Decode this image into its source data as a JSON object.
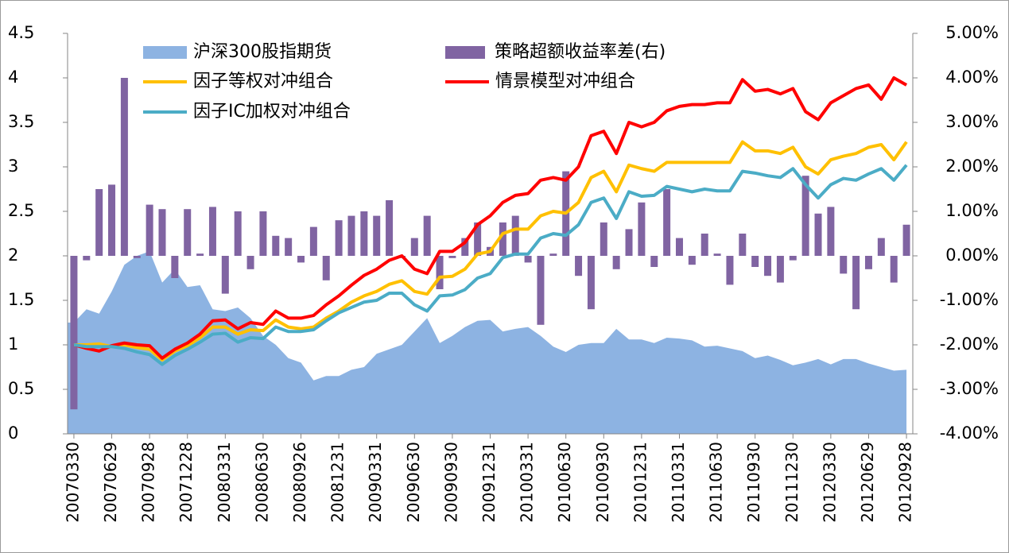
{
  "chart_data": {
    "type": "combo",
    "categories": [
      "20070330",
      null,
      null,
      "20070629",
      null,
      null,
      "20070928",
      null,
      null,
      "20071228",
      null,
      null,
      "20080331",
      null,
      null,
      "20080630",
      null,
      null,
      "20080926",
      null,
      null,
      "20081231",
      null,
      null,
      "20090331",
      null,
      null,
      "20090630",
      null,
      null,
      "20090930",
      null,
      null,
      "20091231",
      null,
      null,
      "20100331",
      null,
      null,
      "20100630",
      null,
      null,
      "20100930",
      null,
      null,
      "20101231",
      null,
      null,
      "20110331",
      null,
      null,
      "20110630",
      null,
      null,
      "20110930",
      null,
      null,
      "20111230",
      null,
      null,
      "20120330",
      null,
      null,
      "20120629",
      null,
      null,
      "20120928"
    ],
    "ylim": [
      0,
      4.5
    ],
    "yticks": [
      0,
      0.5,
      1,
      1.5,
      2,
      2.5,
      3,
      3.5,
      4,
      4.5
    ],
    "y2lim": [
      -4,
      5
    ],
    "y2ticks": [
      {
        "value": -4,
        "label": "-4.00%"
      },
      {
        "value": -3,
        "label": "-3.00%"
      },
      {
        "value": -2,
        "label": "-2.00%"
      },
      {
        "value": -1,
        "label": "-1.00%"
      },
      {
        "value": 0,
        "label": "0.00%"
      },
      {
        "value": 1,
        "label": "1.00%"
      },
      {
        "value": 2,
        "label": "2.00%"
      },
      {
        "value": 3,
        "label": "3.00%"
      },
      {
        "value": 4,
        "label": "4.00%"
      },
      {
        "value": 5,
        "label": "5.00%"
      }
    ],
    "grid": false,
    "legend": "top-left",
    "series": [
      {
        "name": "沪深300股指期货",
        "type": "area",
        "color": "#8db3e2",
        "values": [
          1.25,
          1.4,
          1.35,
          1.6,
          1.9,
          2.0,
          2.05,
          1.7,
          1.85,
          1.65,
          1.67,
          1.4,
          1.38,
          1.42,
          1.3,
          1.1,
          1.0,
          0.85,
          0.8,
          0.6,
          0.65,
          0.65,
          0.72,
          0.75,
          0.9,
          0.95,
          1.0,
          1.15,
          1.3,
          1.02,
          1.1,
          1.2,
          1.27,
          1.28,
          1.15,
          1.18,
          1.2,
          1.1,
          0.98,
          0.92,
          1.0,
          1.02,
          1.02,
          1.18,
          1.06,
          1.06,
          1.02,
          1.08,
          1.07,
          1.05,
          0.98,
          0.99,
          0.96,
          0.93,
          0.85,
          0.88,
          0.83,
          0.77,
          0.8,
          0.84,
          0.78,
          0.84,
          0.84,
          0.79,
          0.75,
          0.71,
          0.72
        ]
      },
      {
        "name": "策略超额收益率差(右)",
        "type": "bar",
        "axis": "y2",
        "color": "#8064a2",
        "values": [
          -3.45,
          -0.1,
          1.5,
          1.6,
          4.0,
          -0.05,
          1.15,
          1.05,
          -0.5,
          1.05,
          0.05,
          1.1,
          -0.85,
          1.0,
          -0.3,
          1.0,
          0.45,
          0.4,
          -0.15,
          0.65,
          -0.55,
          0.8,
          0.9,
          1.0,
          0.9,
          1.25,
          -0.05,
          0.4,
          0.9,
          -0.75,
          -0.05,
          0.4,
          0.75,
          0.2,
          0.75,
          0.9,
          -0.15,
          -1.55,
          0.05,
          1.9,
          -0.45,
          -1.2,
          0.75,
          -0.3,
          0.6,
          1.2,
          -0.25,
          1.5,
          0.4,
          -0.2,
          0.5,
          0.05,
          -0.65,
          0.5,
          -0.25,
          -0.45,
          -0.6,
          -0.1,
          1.8,
          0.95,
          1.1,
          -0.4,
          -1.2,
          -0.3,
          0.4,
          -0.6,
          0.7
        ]
      },
      {
        "name": "因子等权对冲组合",
        "type": "line",
        "color": "#ffc000",
        "values": [
          1.0,
          1.0,
          1.01,
          0.98,
          1.0,
          0.97,
          0.95,
          0.83,
          0.93,
          0.99,
          1.08,
          1.2,
          1.2,
          1.12,
          1.17,
          1.16,
          1.28,
          1.2,
          1.18,
          1.2,
          1.3,
          1.38,
          1.48,
          1.55,
          1.6,
          1.68,
          1.72,
          1.6,
          1.57,
          1.76,
          1.77,
          1.85,
          2.02,
          2.05,
          2.25,
          2.3,
          2.3,
          2.45,
          2.5,
          2.48,
          2.6,
          2.88,
          2.95,
          2.72,
          3.02,
          2.98,
          2.95,
          3.05,
          3.05,
          3.05,
          3.05,
          3.05,
          3.05,
          3.28,
          3.18,
          3.18,
          3.15,
          3.22,
          3.0,
          2.92,
          3.08,
          3.12,
          3.15,
          3.22,
          3.25,
          3.08,
          3.28
        ]
      },
      {
        "name": "情景模型对冲组合",
        "type": "line",
        "color": "#ff0000",
        "values": [
          1.0,
          0.96,
          0.93,
          0.99,
          1.02,
          1.0,
          0.99,
          0.85,
          0.95,
          1.02,
          1.12,
          1.27,
          1.28,
          1.18,
          1.25,
          1.23,
          1.38,
          1.3,
          1.3,
          1.33,
          1.45,
          1.55,
          1.67,
          1.78,
          1.85,
          1.95,
          2.0,
          1.85,
          1.8,
          2.05,
          2.05,
          2.15,
          2.35,
          2.45,
          2.6,
          2.68,
          2.7,
          2.85,
          2.88,
          2.85,
          3.0,
          3.35,
          3.4,
          3.15,
          3.5,
          3.45,
          3.5,
          3.63,
          3.68,
          3.7,
          3.7,
          3.72,
          3.72,
          3.98,
          3.85,
          3.87,
          3.82,
          3.88,
          3.62,
          3.53,
          3.72,
          3.8,
          3.88,
          3.92,
          3.76,
          4.0,
          3.92
        ]
      },
      {
        "name": "因子IC加权对冲组合",
        "type": "line",
        "color": "#4bacc6",
        "values": [
          1.0,
          0.98,
          0.98,
          0.98,
          0.96,
          0.92,
          0.89,
          0.78,
          0.88,
          0.95,
          1.03,
          1.12,
          1.13,
          1.03,
          1.08,
          1.07,
          1.2,
          1.15,
          1.15,
          1.17,
          1.27,
          1.36,
          1.42,
          1.48,
          1.5,
          1.58,
          1.58,
          1.45,
          1.38,
          1.55,
          1.56,
          1.62,
          1.75,
          1.8,
          1.98,
          2.02,
          2.02,
          2.2,
          2.25,
          2.23,
          2.35,
          2.6,
          2.65,
          2.42,
          2.72,
          2.67,
          2.68,
          2.78,
          2.75,
          2.72,
          2.75,
          2.73,
          2.73,
          2.95,
          2.93,
          2.9,
          2.88,
          2.98,
          2.8,
          2.65,
          2.8,
          2.87,
          2.85,
          2.92,
          2.98,
          2.85,
          3.02
        ]
      }
    ]
  }
}
